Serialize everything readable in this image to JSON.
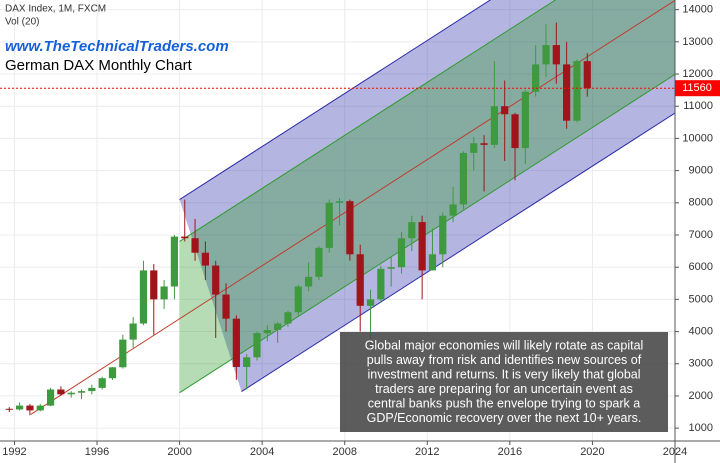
{
  "chart_data": {
    "type": "candlestick",
    "header": "DAX Index, 1M, FXCM",
    "indicator": "Vol (20)",
    "website": "www.TheTechnicalTraders.com",
    "title": "German DAX Monthly Chart",
    "annotation_lines": [
      "Global major economies will likely rotate as capital",
      "pulls away from risk and identifies new sources of",
      "investment and returns.  It is very likely that global",
      "traders are preparing for an uncertain event as",
      "central banks push the envelope trying to spark a",
      "GDP/Economic recovery over the next 10+ years."
    ],
    "x": [
      1991.5,
      1992,
      1992.5,
      1993,
      1993.5,
      1994,
      1994.5,
      1995,
      1995.5,
      1996,
      1996.5,
      1997,
      1997.5,
      1998,
      1998.5,
      1999,
      1999.5,
      2000,
      2000.5,
      2001,
      2001.5,
      2002,
      2002.5,
      2003,
      2003.5,
      2004,
      2004.5,
      2005,
      2005.5,
      2006,
      2006.5,
      2007,
      2007.5,
      2008,
      2008.5,
      2009,
      2009.5,
      2010,
      2010.5,
      2011,
      2011.5,
      2012,
      2012.5,
      2013,
      2013.5,
      2014,
      2014.5,
      2015,
      2015.5,
      2016,
      2016.5,
      2017,
      2017.5,
      2018,
      2018.5,
      2019,
      2019.5
    ],
    "open": [
      1600,
      1580,
      1700,
      1550,
      1700,
      2200,
      2050,
      2100,
      2150,
      2250,
      2550,
      2890,
      3750,
      4250,
      5900,
      5000,
      5400,
      6950,
      6900,
      6450,
      6050,
      5150,
      4400,
      2900,
      3200,
      3950,
      4050,
      4250,
      4600,
      5400,
      5700,
      6600,
      8000,
      8050,
      6400,
      4800,
      5000,
      5950,
      6000,
      6900,
      7400,
      5900,
      6400,
      7600,
      7950,
      9550,
      9850,
      9800,
      11000,
      10750,
      9700,
      11450,
      12300,
      12900,
      12300,
      10550,
      12400
    ],
    "high": [
      1650,
      1800,
      1750,
      1750,
      2250,
      2300,
      2150,
      2200,
      2350,
      2600,
      2900,
      3900,
      4450,
      6200,
      6100,
      5600,
      7000,
      8100,
      7500,
      6800,
      6200,
      5500,
      4500,
      3300,
      4000,
      4200,
      4300,
      4650,
      5450,
      6150,
      6650,
      8100,
      8150,
      8100,
      6700,
      5300,
      6050,
      6350,
      7100,
      7600,
      7600,
      7200,
      7700,
      8500,
      9600,
      10050,
      10100,
      12400,
      11800,
      10800,
      11500,
      12900,
      13550,
      13600,
      13000,
      12450,
      12650
    ],
    "low": [
      1500,
      1550,
      1400,
      1520,
      1680,
      2000,
      1950,
      1900,
      2050,
      2200,
      2500,
      2850,
      3500,
      4200,
      3900,
      4700,
      5000,
      6800,
      6200,
      5600,
      3800,
      4000,
      2500,
      2200,
      3100,
      3700,
      3650,
      4150,
      4500,
      5250,
      5600,
      6450,
      7300,
      6200,
      4000,
      3600,
      4900,
      5400,
      5800,
      6500,
      5000,
      5900,
      6000,
      7400,
      7800,
      9000,
      8350,
      9700,
      9300,
      8700,
      9200,
      11300,
      11900,
      11700,
      10300,
      10500,
      11300
    ],
    "close": [
      1580,
      1700,
      1550,
      1700,
      2200,
      2050,
      2100,
      2150,
      2250,
      2550,
      2890,
      3750,
      4250,
      5900,
      5000,
      5400,
      6950,
      6900,
      6450,
      6050,
      5150,
      4400,
      2900,
      3200,
      3950,
      4050,
      4250,
      4600,
      5400,
      5700,
      6600,
      8000,
      8050,
      6400,
      4800,
      5000,
      5950,
      6000,
      6900,
      7400,
      5900,
      6400,
      7600,
      7950,
      9550,
      9850,
      9800,
      11000,
      10750,
      9700,
      11450,
      12300,
      12900,
      12300,
      10550,
      12400,
      11560
    ],
    "up_color": "#3f9a3f",
    "down_color": "#a0141c",
    "channel": [
      {
        "x": [
          2000,
          2024
        ],
        "y": [
          8100,
          17988
        ],
        "color": "#2b2ba8"
      },
      {
        "x": [
          2000,
          2024
        ],
        "y": [
          6800,
          16688
        ],
        "color": "#2f9a2f"
      },
      {
        "x": [
          1992.8,
          2024
        ],
        "y": [
          1430,
          14288
        ],
        "color": "#c0392b"
      },
      {
        "x": [
          2000,
          2024
        ],
        "y": [
          2100,
          11988
        ],
        "color": "#2f9a2f"
      },
      {
        "x": [
          2003,
          2024
        ],
        "y": [
          2136,
          10788
        ],
        "color": "#2b2ba8"
      }
    ],
    "hline": {
      "value": 11560,
      "color": "#ff0000"
    },
    "xlim": [
      1991.3,
      2024.0
    ],
    "xticks": [
      1992,
      1996,
      2000,
      2004,
      2008,
      2012,
      2016,
      2020,
      2024
    ],
    "ylim": [
      600,
      14300
    ],
    "yticks": [
      1000,
      2000,
      3000,
      4000,
      5000,
      6000,
      7000,
      8000,
      9000,
      10000,
      11000,
      12000,
      13000,
      14000
    ],
    "grid": true
  }
}
